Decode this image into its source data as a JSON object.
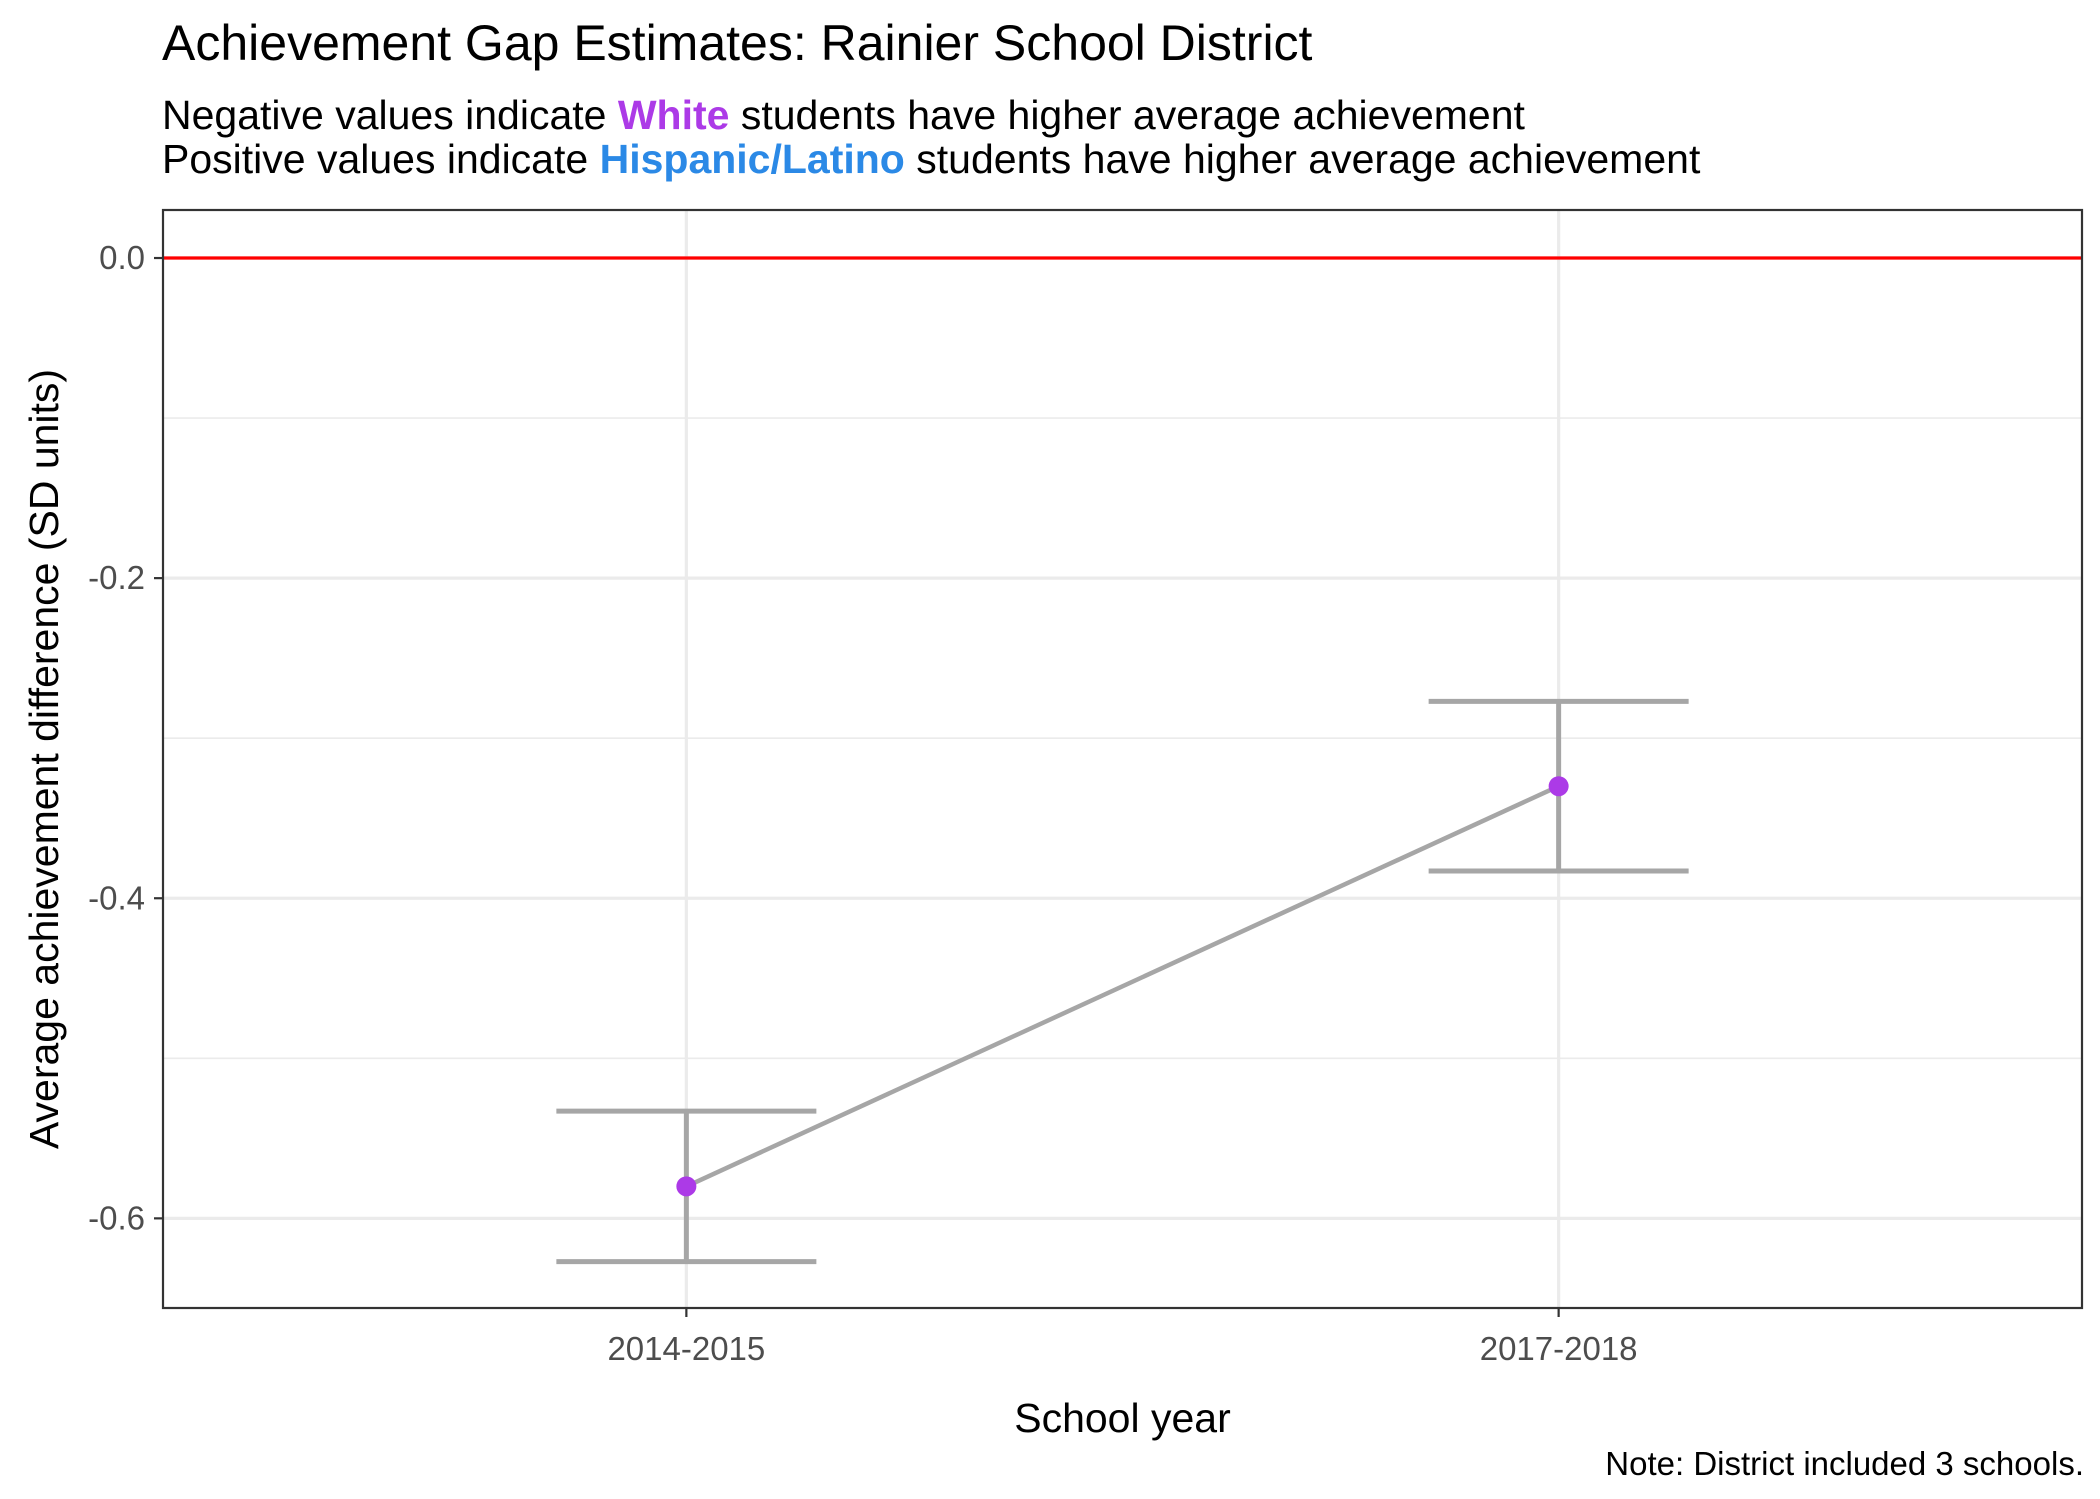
{
  "chart_data": {
    "type": "line",
    "title": "Achievement Gap Estimates: Rainier School District",
    "subtitle": {
      "line1": {
        "before": "Negative values indicate",
        "highlight": "White",
        "after": "students have higher average achievement"
      },
      "line2": {
        "before": "Positive values indicate",
        "highlight": "Hispanic/Latino",
        "after": "students have higher average achievement"
      }
    },
    "xlabel": "School year",
    "ylabel": "Average achievement difference (SD units)",
    "categories": [
      "2014-2015",
      "2017-2018"
    ],
    "series": [
      {
        "values": [
          -0.58,
          -0.33
        ],
        "ci_lower": [
          -0.627,
          -0.383
        ],
        "ci_upper": [
          -0.533,
          -0.277
        ]
      }
    ],
    "yticks": [
      0.0,
      -0.2,
      -0.4,
      -0.6
    ],
    "ytick_labels": [
      "0.0",
      "-0.2",
      "-0.4",
      "-0.6"
    ],
    "ylim": [
      -0.656,
      0.03
    ],
    "reference_line": 0.0,
    "grid": true,
    "caption": "Note: District included 3 schools.",
    "colors": {
      "point": "#ac3ae7",
      "line": "#a6a6a6",
      "errorbar": "#a6a6a6",
      "reference_line": "#ff0000",
      "white_label": "#ac3ae7",
      "hispanic_label": "#2b89e6",
      "grid": "#ebebeb"
    }
  }
}
